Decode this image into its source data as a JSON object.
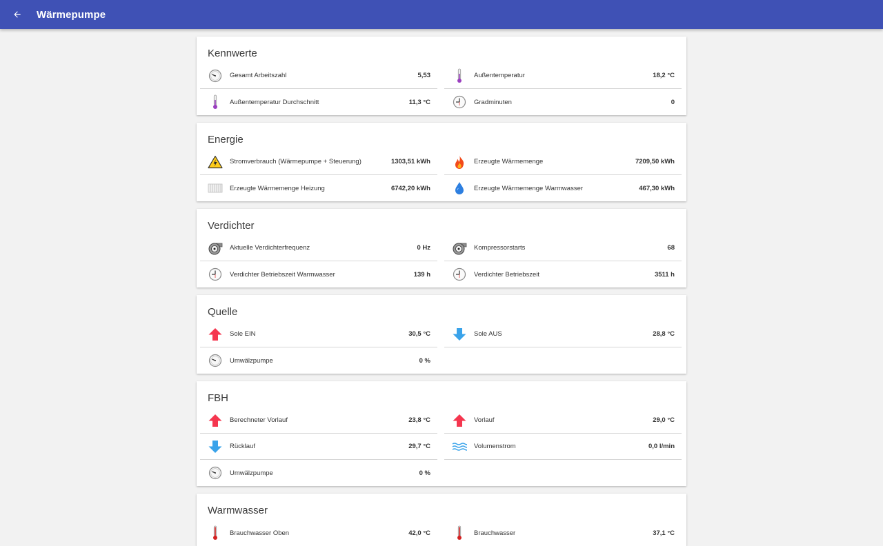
{
  "app": {
    "title": "Wärmepumpe",
    "back_icon": "arrow-left-icon",
    "accent_color": "#3f51b5"
  },
  "cards": {
    "kennwerte": {
      "title": "Kennwerte",
      "items": [
        {
          "label": "Gesamt Arbeitszahl",
          "value": "5,53",
          "icon": "gauge-icon"
        },
        {
          "label": "Außentemperatur",
          "value": "18,2 °C",
          "icon": "thermometer-icon"
        },
        {
          "label": "Außentemperatur Durchschnitt",
          "value": "11,3 °C",
          "icon": "thermometer-icon"
        },
        {
          "label": "Gradminuten",
          "value": "0",
          "icon": "clock-icon"
        }
      ]
    },
    "energie": {
      "title": "Energie",
      "items": [
        {
          "label": "Stromverbrauch (Wärmepumpe + Steuerung)",
          "value": "1303,51 kWh",
          "icon": "high-voltage-icon"
        },
        {
          "label": "Erzeugte Wärmemenge",
          "value": "7209,50 kWh",
          "icon": "flame-icon"
        },
        {
          "label": "Erzeugte Wärmemenge Heizung",
          "value": "6742,20 kWh",
          "icon": "radiator-icon"
        },
        {
          "label": "Erzeugte Wärmemenge Warmwasser",
          "value": "467,30 kWh",
          "icon": "water-drop-icon"
        }
      ]
    },
    "verdichter": {
      "title": "Verdichter",
      "items": [
        {
          "label": "Aktuelle Verdichterfrequenz",
          "value": "0 Hz",
          "icon": "compressor-icon"
        },
        {
          "label": "Kompressorstarts",
          "value": "68",
          "icon": "compressor-icon"
        },
        {
          "label": "Verdichter Betriebszeit Warmwasser",
          "value": "139 h",
          "icon": "clock-icon"
        },
        {
          "label": "Verdichter Betriebszeit",
          "value": "3511 h",
          "icon": "clock-icon"
        }
      ]
    },
    "quelle": {
      "title": "Quelle",
      "items": [
        {
          "label": "Sole EIN",
          "value": "30,5 °C",
          "icon": "arrow-up-icon"
        },
        {
          "label": "Sole AUS",
          "value": "28,8 °C",
          "icon": "arrow-down-icon"
        },
        {
          "label": "Umwälzpumpe",
          "value": "0 %",
          "icon": "gauge-icon"
        }
      ]
    },
    "fbh": {
      "title": "FBH",
      "items": [
        {
          "label": "Berechneter Vorlauf",
          "value": "23,8 °C",
          "icon": "arrow-up-icon"
        },
        {
          "label": "Vorlauf",
          "value": "29,0 °C",
          "icon": "arrow-up-icon"
        },
        {
          "label": "Rücklauf",
          "value": "29,7 °C",
          "icon": "arrow-down-icon"
        },
        {
          "label": "Volumenstrom",
          "value": "0,0 l/min",
          "icon": "waves-icon"
        },
        {
          "label": "Umwälzpumpe",
          "value": "0 %",
          "icon": "gauge-icon"
        }
      ]
    },
    "warmwasser": {
      "title": "Warmwasser",
      "items": [
        {
          "label": "Brauchwasser Oben",
          "value": "42,0 °C",
          "icon": "thermometer-hot-icon"
        },
        {
          "label": "Brauchwasser",
          "value": "37,1 °C",
          "icon": "thermometer-hot-icon"
        }
      ]
    }
  },
  "colors": {
    "arrow_up": "#f5364f",
    "arrow_down": "#3aa3ea",
    "thermometer": "#9b3fc0",
    "thermometer_hot": "#d42121",
    "flame": "#f24a1a",
    "drop": "#2d7fe0"
  }
}
